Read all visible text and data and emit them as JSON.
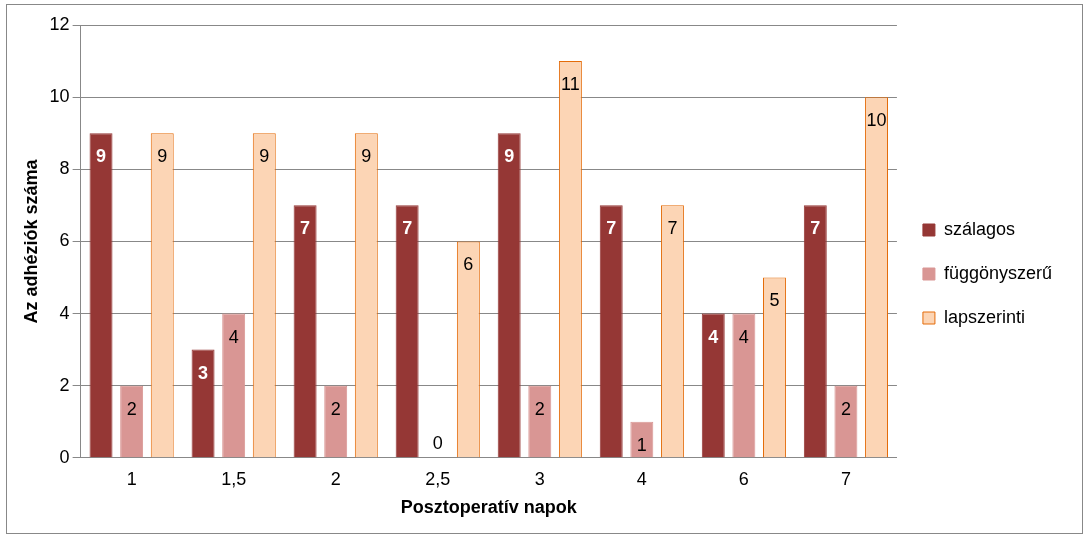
{
  "chart_data": {
    "type": "bar",
    "xlabel": "Posztoperatív napok",
    "ylabel": "Az adhéziók száma",
    "categories": [
      "1",
      "1,5",
      "2",
      "2,5",
      "3",
      "4",
      "6",
      "7"
    ],
    "series": [
      {
        "name": "szálagos",
        "color": "#953735",
        "values": [
          9,
          3,
          7,
          7,
          9,
          7,
          4,
          7
        ]
      },
      {
        "name": "függönyszerű",
        "color": "#d99694",
        "values": [
          2,
          4,
          2,
          0,
          2,
          1,
          4,
          2
        ]
      },
      {
        "name": "lapszerinti",
        "color": "#fcd5b5",
        "values": [
          9,
          9,
          9,
          6,
          11,
          7,
          5,
          10
        ]
      }
    ],
    "ylim": [
      0,
      12
    ],
    "yticks": [
      0,
      2,
      4,
      6,
      8,
      10,
      12
    ],
    "grid": "y",
    "legend": "right",
    "data_labels": true
  }
}
